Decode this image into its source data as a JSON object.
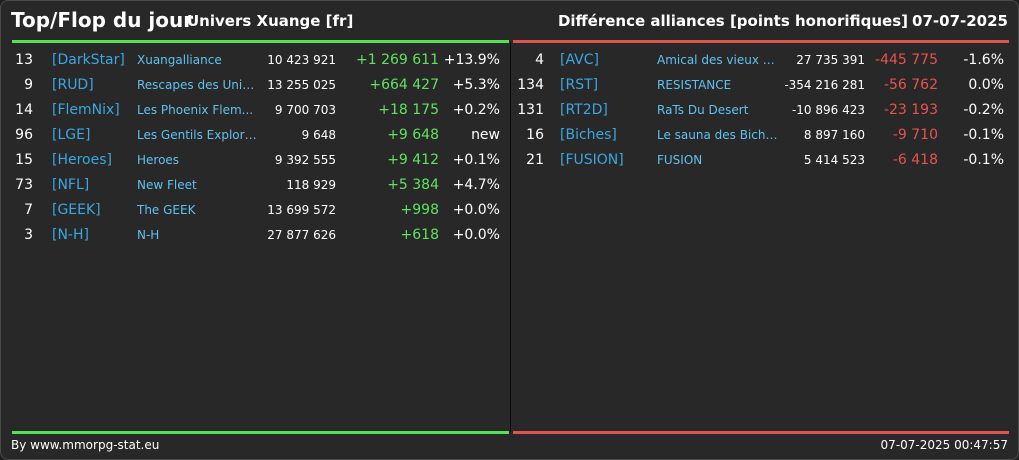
{
  "header": {
    "title": "Top/Flop du jour",
    "universe": "Univers Xuange [fr]",
    "category": "Différence alliances [points honorifiques]",
    "date": "07-07-2025"
  },
  "top": [
    {
      "rank": "13",
      "tag": "[DarkStar]",
      "name": "Xuangalliance",
      "points": "10 423 921",
      "diff": "+1 269 611",
      "pct": "+13.9%"
    },
    {
      "rank": "9",
      "tag": "[RUD]",
      "name": "Rescapes des Univ...",
      "points": "13 255 025",
      "diff": "+664 427",
      "pct": "+5.3%"
    },
    {
      "rank": "14",
      "tag": "[FlemNix]",
      "name": "Les Phoenix Flem...",
      "points": "9 700 703",
      "diff": "+18 175",
      "pct": "+0.2%"
    },
    {
      "rank": "96",
      "tag": "[LGE]",
      "name": "Les Gentils Explora...",
      "points": "9 648",
      "diff": "+9 648",
      "pct": "new"
    },
    {
      "rank": "15",
      "tag": "[Heroes]",
      "name": "Heroes",
      "points": "9 392 555",
      "diff": "+9 412",
      "pct": "+0.1%"
    },
    {
      "rank": "73",
      "tag": "[NFL]",
      "name": "New Fleet",
      "points": "118 929",
      "diff": "+5 384",
      "pct": "+4.7%"
    },
    {
      "rank": "7",
      "tag": "[GEEK]",
      "name": "The GEEK",
      "points": "13 699 572",
      "diff": "+998",
      "pct": "+0.0%"
    },
    {
      "rank": "3",
      "tag": "[N-H]",
      "name": "N-H",
      "points": "27 877 626",
      "diff": "+618",
      "pct": "+0.0%"
    }
  ],
  "flop": [
    {
      "rank": "4",
      "tag": "[AVC]",
      "name": "Amical des vieux con",
      "points": "27 735 391",
      "diff": "-445 775",
      "pct": "-1.6%"
    },
    {
      "rank": "134",
      "tag": "[RST]",
      "name": "RESISTANCE",
      "points": "-354 216 281",
      "diff": "-56 762",
      "pct": "0.0%"
    },
    {
      "rank": "131",
      "tag": "[RT2D]",
      "name": "RaTs Du Desert",
      "points": "-10 896 423",
      "diff": "-23 193",
      "pct": "-0.2%"
    },
    {
      "rank": "16",
      "tag": "[Biches]",
      "name": "Le sauna des Biches",
      "points": "8 897 160",
      "diff": "-9 710",
      "pct": "-0.1%"
    },
    {
      "rank": "21",
      "tag": "[FUSION]",
      "name": "FUSION",
      "points": "5 414 523",
      "diff": "-6 418",
      "pct": "-0.1%"
    }
  ],
  "footer": {
    "source": "By www.mmorpg-stat.eu",
    "timestamp": "07-07-2025 00:47:57"
  },
  "colors": {
    "positive": "#5fe35f",
    "negative": "#e8524d",
    "tag": "#3aa7e2",
    "name": "#61c0ef"
  }
}
